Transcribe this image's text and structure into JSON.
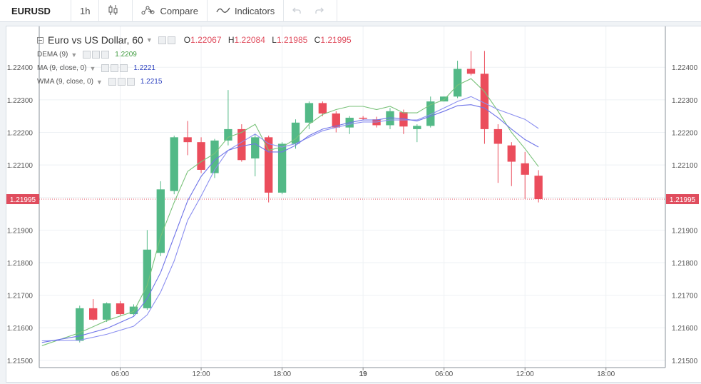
{
  "toolbar": {
    "symbol": "EURUSD",
    "interval": "1h",
    "compare_label": "Compare",
    "indicators_label": "Indicators"
  },
  "legend": {
    "title": "Euro vs US Dollar, 60",
    "open_key": "O",
    "open": "1.22067",
    "high_key": "H",
    "high": "1.22084",
    "low_key": "L",
    "low": "1.21985",
    "close_key": "C",
    "close": "1.21995",
    "indicators": [
      {
        "label": "DEMA (9)",
        "value": "1.2209",
        "color": "#3d9a3d"
      },
      {
        "label": "MA (9, close, 0)",
        "value": "1.2221",
        "color": "#2a3fbf"
      },
      {
        "label": "WMA (9, close, 0)",
        "value": "1.2215",
        "color": "#2a3fbf"
      }
    ]
  },
  "colors": {
    "up": "#53b987",
    "down": "#eb4d5c",
    "dema": "#7ac27a",
    "ma": "#8a8ef0",
    "wma": "#6f74e8",
    "price_line": "#e04d5e"
  },
  "chart_data": {
    "type": "candlestick",
    "y_ticks": [
      "1.21500",
      "1.21600",
      "1.21700",
      "1.21800",
      "1.21900",
      "1.22000",
      "1.22100",
      "1.22200",
      "1.22300",
      "1.22400"
    ],
    "x_ticks": [
      {
        "label": "06:00",
        "hour": 6
      },
      {
        "label": "12:00",
        "hour": 12
      },
      {
        "label": "18:00",
        "hour": 18
      },
      {
        "label": "19",
        "hour": 24,
        "bold": true
      },
      {
        "label": "06:00",
        "hour": 30
      },
      {
        "label": "12:00",
        "hour": 36
      },
      {
        "label": "18:00",
        "hour": 42
      }
    ],
    "ylim": [
      1.2148,
      1.22475
    ],
    "xlim": [
      0.0,
      46.4
    ],
    "last_price": "1.21995",
    "candles": [
      {
        "h": 3,
        "o": 1.2156,
        "hi": 1.21668,
        "l": 1.21555,
        "c": 1.2166
      },
      {
        "h": 4,
        "o": 1.2166,
        "hi": 1.21688,
        "l": 1.21622,
        "c": 1.21625
      },
      {
        "h": 5,
        "o": 1.21625,
        "hi": 1.21678,
        "l": 1.21618,
        "c": 1.21675
      },
      {
        "h": 6,
        "o": 1.21675,
        "hi": 1.21682,
        "l": 1.21638,
        "c": 1.21642
      },
      {
        "h": 7,
        "o": 1.21642,
        "hi": 1.21672,
        "l": 1.21638,
        "c": 1.21665
      },
      {
        "h": 8,
        "o": 1.2166,
        "hi": 1.219,
        "l": 1.21655,
        "c": 1.2184
      },
      {
        "h": 9,
        "o": 1.2183,
        "hi": 1.2205,
        "l": 1.2182,
        "c": 1.22025
      },
      {
        "h": 10,
        "o": 1.2202,
        "hi": 1.2219,
        "l": 1.2201,
        "c": 1.22185
      },
      {
        "h": 11,
        "o": 1.22185,
        "hi": 1.22235,
        "l": 1.2213,
        "c": 1.2217
      },
      {
        "h": 12,
        "o": 1.2217,
        "hi": 1.22185,
        "l": 1.22075,
        "c": 1.22085
      },
      {
        "h": 13,
        "o": 1.22075,
        "hi": 1.2218,
        "l": 1.2206,
        "c": 1.22175
      },
      {
        "h": 14,
        "o": 1.22175,
        "hi": 1.2233,
        "l": 1.2216,
        "c": 1.2221
      },
      {
        "h": 15,
        "o": 1.2221,
        "hi": 1.22225,
        "l": 1.2211,
        "c": 1.22115
      },
      {
        "h": 16,
        "o": 1.2212,
        "hi": 1.22195,
        "l": 1.22065,
        "c": 1.22185
      },
      {
        "h": 17,
        "o": 1.22185,
        "hi": 1.2219,
        "l": 1.21985,
        "c": 1.22015
      },
      {
        "h": 18,
        "o": 1.22015,
        "hi": 1.2217,
        "l": 1.2201,
        "c": 1.22165
      },
      {
        "h": 19,
        "o": 1.22165,
        "hi": 1.2224,
        "l": 1.2215,
        "c": 1.2223
      },
      {
        "h": 20,
        "o": 1.2223,
        "hi": 1.22295,
        "l": 1.2221,
        "c": 1.2229
      },
      {
        "h": 21,
        "o": 1.2229,
        "hi": 1.22295,
        "l": 1.2225,
        "c": 1.22258
      },
      {
        "h": 22,
        "o": 1.22258,
        "hi": 1.22265,
        "l": 1.222,
        "c": 1.22215
      },
      {
        "h": 23,
        "o": 1.22215,
        "hi": 1.2225,
        "l": 1.22195,
        "c": 1.22245
      },
      {
        "h": 24,
        "o": 1.22245,
        "hi": 1.2225,
        "l": 1.22238,
        "c": 1.22242
      },
      {
        "h": 25,
        "o": 1.2224,
        "hi": 1.22248,
        "l": 1.22215,
        "c": 1.22222
      },
      {
        "h": 26,
        "o": 1.22222,
        "hi": 1.22275,
        "l": 1.2221,
        "c": 1.22265
      },
      {
        "h": 27,
        "o": 1.22262,
        "hi": 1.2227,
        "l": 1.22195,
        "c": 1.22218
      },
      {
        "h": 28,
        "o": 1.2221,
        "hi": 1.22225,
        "l": 1.2217,
        "c": 1.2222
      },
      {
        "h": 29,
        "o": 1.2222,
        "hi": 1.2231,
        "l": 1.22215,
        "c": 1.22295
      },
      {
        "h": 30,
        "o": 1.22295,
        "hi": 1.2231,
        "l": 1.22295,
        "c": 1.2231
      },
      {
        "h": 31,
        "o": 1.2231,
        "hi": 1.2242,
        "l": 1.22305,
        "c": 1.22395
      },
      {
        "h": 32,
        "o": 1.22395,
        "hi": 1.2245,
        "l": 1.22375,
        "c": 1.2238
      },
      {
        "h": 33,
        "o": 1.2238,
        "hi": 1.2245,
        "l": 1.22165,
        "c": 1.2221
      },
      {
        "h": 34,
        "o": 1.2221,
        "hi": 1.22225,
        "l": 1.22045,
        "c": 1.22165
      },
      {
        "h": 35,
        "o": 1.2216,
        "hi": 1.2217,
        "l": 1.22035,
        "c": 1.2211
      },
      {
        "h": 36,
        "o": 1.22105,
        "hi": 1.2214,
        "l": 1.21995,
        "c": 1.2207
      },
      {
        "h": 37,
        "o": 1.22067,
        "hi": 1.22084,
        "l": 1.21985,
        "c": 1.21995
      }
    ],
    "series": [
      {
        "name": "DEMA (9)",
        "values": [
          [
            0.2,
            1.21545
          ],
          [
            3,
            1.21585
          ],
          [
            5,
            1.21622
          ],
          [
            7,
            1.2165
          ],
          [
            8,
            1.2173
          ],
          [
            9,
            1.2188
          ],
          [
            10,
            1.21985
          ],
          [
            11,
            1.2208
          ],
          [
            12,
            1.2211
          ],
          [
            13,
            1.22135
          ],
          [
            14,
            1.22185
          ],
          [
            15,
            1.222
          ],
          [
            16,
            1.22225
          ],
          [
            17,
            1.22145
          ],
          [
            18,
            1.22155
          ],
          [
            19,
            1.2218
          ],
          [
            20,
            1.22225
          ],
          [
            21,
            1.22255
          ],
          [
            22,
            1.2227
          ],
          [
            23,
            1.2228
          ],
          [
            24,
            1.2228
          ],
          [
            25,
            1.2227
          ],
          [
            26,
            1.2228
          ],
          [
            27,
            1.2226
          ],
          [
            28,
            1.2226
          ],
          [
            29,
            1.22285
          ],
          [
            30,
            1.223
          ],
          [
            31,
            1.22345
          ],
          [
            32,
            1.22365
          ],
          [
            33,
            1.22325
          ],
          [
            34,
            1.22265
          ],
          [
            35,
            1.222
          ],
          [
            36,
            1.2215
          ],
          [
            37,
            1.22095
          ]
        ]
      },
      {
        "name": "MA (9, close, 0)",
        "values": [
          [
            0.2,
            1.2156
          ],
          [
            3,
            1.21562
          ],
          [
            5,
            1.2158
          ],
          [
            7,
            1.21605
          ],
          [
            8,
            1.2164
          ],
          [
            9,
            1.2171
          ],
          [
            10,
            1.21805
          ],
          [
            11,
            1.2193
          ],
          [
            12,
            1.22005
          ],
          [
            13,
            1.22085
          ],
          [
            14,
            1.22145
          ],
          [
            15,
            1.2217
          ],
          [
            16,
            1.22195
          ],
          [
            17,
            1.22165
          ],
          [
            18,
            1.22155
          ],
          [
            19,
            1.22165
          ],
          [
            20,
            1.22185
          ],
          [
            21,
            1.22205
          ],
          [
            22,
            1.22215
          ],
          [
            23,
            1.22225
          ],
          [
            24,
            1.22232
          ],
          [
            25,
            1.22232
          ],
          [
            26,
            1.22238
          ],
          [
            27,
            1.22238
          ],
          [
            28,
            1.22238
          ],
          [
            29,
            1.22255
          ],
          [
            30,
            1.22275
          ],
          [
            31,
            1.22295
          ],
          [
            32,
            1.2231
          ],
          [
            33,
            1.2229
          ],
          [
            34,
            1.2227
          ],
          [
            35,
            1.22255
          ],
          [
            36,
            1.2224
          ],
          [
            37,
            1.22212
          ]
        ]
      },
      {
        "name": "WMA (9, close, 0)",
        "values": [
          [
            0.2,
            1.21555
          ],
          [
            3,
            1.21575
          ],
          [
            5,
            1.21598
          ],
          [
            7,
            1.21635
          ],
          [
            8,
            1.2169
          ],
          [
            9,
            1.2177
          ],
          [
            10,
            1.2188
          ],
          [
            11,
            1.2199
          ],
          [
            12,
            1.22065
          ],
          [
            13,
            1.22115
          ],
          [
            14,
            1.22145
          ],
          [
            15,
            1.22158
          ],
          [
            16,
            1.22165
          ],
          [
            17,
            1.2214
          ],
          [
            18,
            1.2214
          ],
          [
            19,
            1.2216
          ],
          [
            20,
            1.2219
          ],
          [
            21,
            1.2221
          ],
          [
            22,
            1.2222
          ],
          [
            23,
            1.2223
          ],
          [
            24,
            1.22238
          ],
          [
            25,
            1.22238
          ],
          [
            26,
            1.22245
          ],
          [
            27,
            1.22242
          ],
          [
            28,
            1.22235
          ],
          [
            29,
            1.2225
          ],
          [
            30,
            1.22265
          ],
          [
            31,
            1.22282
          ],
          [
            32,
            1.22285
          ],
          [
            33,
            1.22275
          ],
          [
            34,
            1.22245
          ],
          [
            35,
            1.2221
          ],
          [
            36,
            1.22178
          ],
          [
            37,
            1.22155
          ]
        ]
      }
    ]
  }
}
